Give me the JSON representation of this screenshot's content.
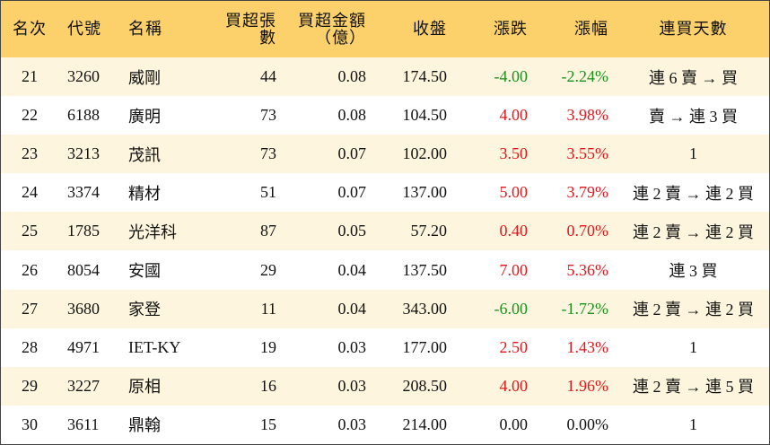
{
  "table": {
    "header": [
      "名次",
      "代號",
      "名稱",
      "買超張數",
      "買超金額\n（億）",
      "收盤",
      "漲跌",
      "漲幅",
      "連買天數"
    ],
    "rows": [
      [
        "21",
        "3260",
        "威剛",
        "44",
        "0.08",
        "174.50",
        "-4.00",
        "-2.24%",
        "連 6 賣 → 買"
      ],
      [
        "22",
        "6188",
        "廣明",
        "73",
        "0.08",
        "104.50",
        "4.00",
        "3.98%",
        "賣 → 連 3 買"
      ],
      [
        "23",
        "3213",
        "茂訊",
        "73",
        "0.07",
        "102.00",
        "3.50",
        "3.55%",
        "1"
      ],
      [
        "24",
        "3374",
        "精材",
        "51",
        "0.07",
        "137.00",
        "5.00",
        "3.79%",
        "連 2 賣 → 連 2 買"
      ],
      [
        "25",
        "1785",
        "光洋科",
        "87",
        "0.05",
        "57.20",
        "0.40",
        "0.70%",
        "連 2 賣 → 連 2 買"
      ],
      [
        "26",
        "8054",
        "安國",
        "29",
        "0.04",
        "137.50",
        "7.00",
        "5.36%",
        "連 3 買"
      ],
      [
        "27",
        "3680",
        "家登",
        "11",
        "0.04",
        "343.00",
        "-6.00",
        "-1.72%",
        "連 2 賣 → 連 2 買"
      ],
      [
        "28",
        "4971",
        "IET-KY",
        "19",
        "0.03",
        "177.00",
        "2.50",
        "1.43%",
        "1"
      ],
      [
        "29",
        "3227",
        "原相",
        "16",
        "0.03",
        "208.50",
        "4.00",
        "1.96%",
        "連 2 賣 → 連 5 買"
      ],
      [
        "30",
        "3611",
        "鼎翰",
        "15",
        "0.03",
        "214.00",
        "0.00",
        "0.00%",
        "1"
      ]
    ]
  }
}
